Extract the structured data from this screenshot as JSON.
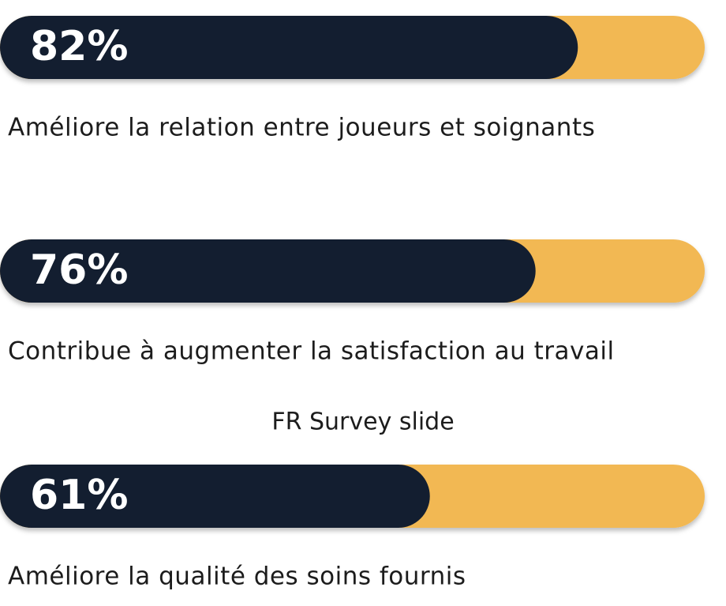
{
  "chart_data": {
    "type": "bar",
    "title": "FR Survey slide",
    "categories": [
      "Améliore la relation entre joueurs et soignants",
      "Contribue à augmenter la satisfaction au travail",
      "Améliore la qualité des soins fournis"
    ],
    "values": [
      82,
      76,
      61
    ],
    "value_labels": [
      "82%",
      "76%",
      "61%"
    ],
    "color": "#131e30",
    "track_color": "#f2b853",
    "xlim": [
      0,
      100
    ]
  }
}
